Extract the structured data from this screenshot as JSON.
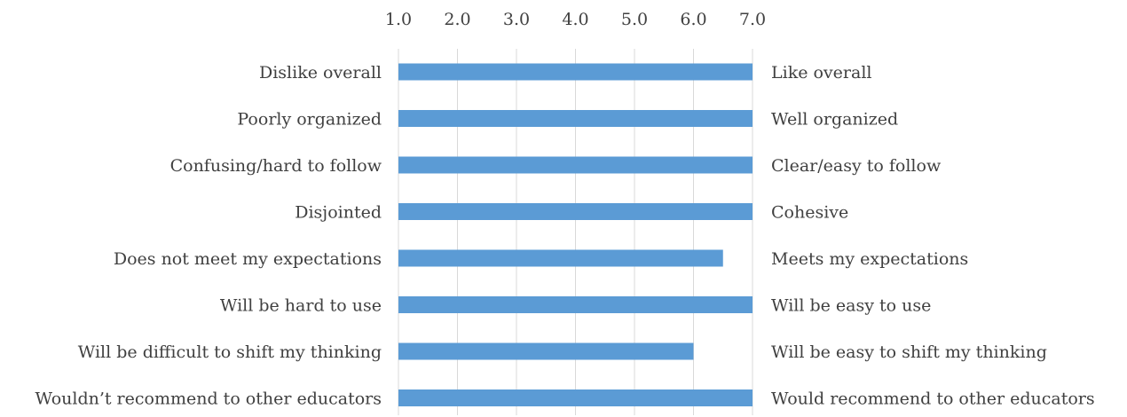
{
  "chart_data": {
    "type": "bar",
    "orientation": "horizontal",
    "xlim": [
      1,
      7
    ],
    "ticks": [
      "1.0",
      "2.0",
      "3.0",
      "4.0",
      "5.0",
      "6.0",
      "7.0"
    ],
    "tick_values": [
      1,
      2,
      3,
      4,
      5,
      6,
      7
    ],
    "grid": true,
    "items": [
      {
        "left_label": "Dislike overall",
        "right_label": "Like overall",
        "value": 7.0
      },
      {
        "left_label": "Poorly organized",
        "right_label": "Well organized",
        "value": 7.0
      },
      {
        "left_label": "Confusing/hard to follow",
        "right_label": "Clear/easy to follow",
        "value": 7.0
      },
      {
        "left_label": "Disjointed",
        "right_label": "Cohesive",
        "value": 7.0
      },
      {
        "left_label": "Does not meet my expectations",
        "right_label": "Meets my expectations",
        "value": 6.5
      },
      {
        "left_label": "Will be hard to use",
        "right_label": "Will be easy to use",
        "value": 7.0
      },
      {
        "left_label": "Will be difficult to shift my thinking",
        "right_label": "Will be easy to shift my thinking",
        "value": 6.0
      },
      {
        "left_label": "Wouldn’t recommend to other educators",
        "right_label": "Would recommend to other educators",
        "value": 7.0
      }
    ],
    "bar_color": "#5b9bd5",
    "grid_color": "#d9d9d9",
    "text_color": "#404040"
  }
}
